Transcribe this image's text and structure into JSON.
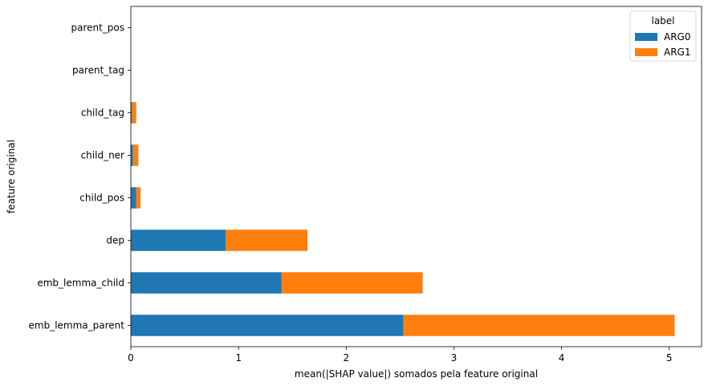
{
  "chart_data": {
    "type": "bar",
    "orientation": "horizontal",
    "stacked": true,
    "categories": [
      "emb_lemma_parent",
      "emb_lemma_child",
      "dep",
      "child_pos",
      "child_ner",
      "child_tag",
      "parent_tag",
      "parent_pos"
    ],
    "series": [
      {
        "name": "ARG0",
        "color": "#1f77b4",
        "values": [
          2.53,
          1.4,
          0.88,
          0.05,
          0.02,
          0.01,
          0.0,
          0.0
        ]
      },
      {
        "name": "ARG1",
        "color": "#ff7f0e",
        "values": [
          2.52,
          1.31,
          0.76,
          0.04,
          0.05,
          0.04,
          0.0,
          0.0
        ]
      }
    ],
    "xlabel": "mean(|SHAP value|) somados pela feature original",
    "ylabel": "feature original",
    "xlim": [
      0,
      5.3
    ],
    "xticks": [
      0,
      1,
      2,
      3,
      4,
      5
    ],
    "legend": {
      "title": "label",
      "placement": "top-right"
    },
    "grid": false
  }
}
